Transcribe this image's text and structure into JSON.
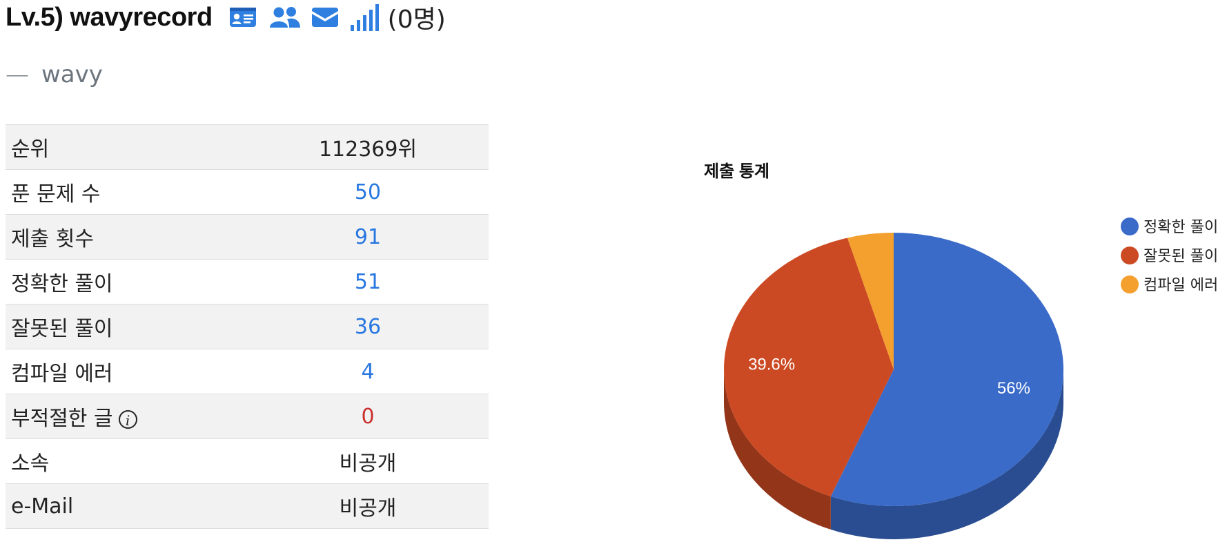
{
  "header": {
    "username": "Lv.5) wavyrecord",
    "icons": [
      "profile-card-icon",
      "friends-icon",
      "mail-icon",
      "signal-bars-icon"
    ],
    "follower_count": "(0명)"
  },
  "motto": {
    "dash": "—",
    "text": "wavy"
  },
  "stats_table": {
    "rows": [
      {
        "label": "순위",
        "value": "112369위"
      },
      {
        "label": "푼 문제 수",
        "value": "50"
      },
      {
        "label": "제출 횟수",
        "value": "91"
      },
      {
        "label": "정확한 풀이",
        "value": "51"
      },
      {
        "label": "잘못된 풀이",
        "value": "36"
      },
      {
        "label": "컴파일 에러",
        "value": "4"
      },
      {
        "label": "부적절한 글",
        "value": "0",
        "info_icon": "i"
      },
      {
        "label": "소속",
        "value": "비공개"
      },
      {
        "label": "e-Mail",
        "value": "비공개"
      }
    ]
  },
  "colors": {
    "link": "#2877e0",
    "danger": "#c9302c",
    "icon_blue": "#2f7fe0"
  },
  "chart_data": {
    "type": "pie",
    "title": "제출 통계",
    "categories": [
      "정확한 풀이",
      "잘못된 풀이",
      "컴파일 에러"
    ],
    "values": [
      51,
      36,
      4
    ],
    "data_labels": [
      "56%",
      "39.6%",
      ""
    ],
    "colors": [
      "#3a6bc9",
      "#cc4a23",
      "#f3a02f"
    ],
    "legend_position": "right",
    "three_d": true
  }
}
